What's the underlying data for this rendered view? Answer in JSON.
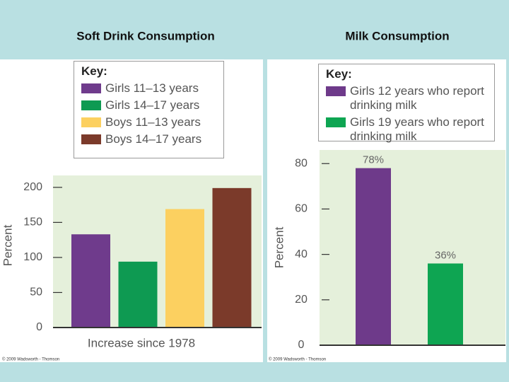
{
  "chart_data": [
    {
      "type": "bar",
      "title": "Soft Drink Consumption",
      "legend_title": "Key:",
      "categories": [
        null
      ],
      "series": [
        {
          "name": "Girls 11–13 years",
          "color": "#6f3b8c",
          "values": [
            133
          ]
        },
        {
          "name": "Girls 14–17 years",
          "color": "#0e9a52",
          "values": [
            94
          ]
        },
        {
          "name": "Boys 11–13 years",
          "color": "#fcd060",
          "values": [
            169
          ]
        },
        {
          "name": "Boys 14–17 years",
          "color": "#7b3a2a",
          "values": [
            199
          ]
        }
      ],
      "ylabel": "Percent",
      "xlabel": "Increase since 1978",
      "ylim": [
        0,
        217
      ],
      "yticks": [
        0,
        50,
        100,
        150,
        200
      ],
      "credit": "© 2009 Wadsworth - Thomson"
    },
    {
      "type": "bar",
      "title": "Milk Consumption",
      "legend_title": "Key:",
      "categories": [
        null
      ],
      "series": [
        {
          "name": "Girls 12 years who report drinking milk",
          "color": "#6e3a8a",
          "values": [
            78
          ],
          "value_labels": [
            "78%"
          ]
        },
        {
          "name": "Girls 19 years who report drinking milk",
          "color": "#0ea552",
          "values": [
            36
          ],
          "value_labels": [
            "36%"
          ]
        }
      ],
      "ylabel": "Percent",
      "ylim": [
        0,
        86
      ],
      "yticks": [
        0,
        20,
        40,
        60,
        80
      ],
      "credit": "© 2009 Wadsworth - Thomson"
    }
  ]
}
